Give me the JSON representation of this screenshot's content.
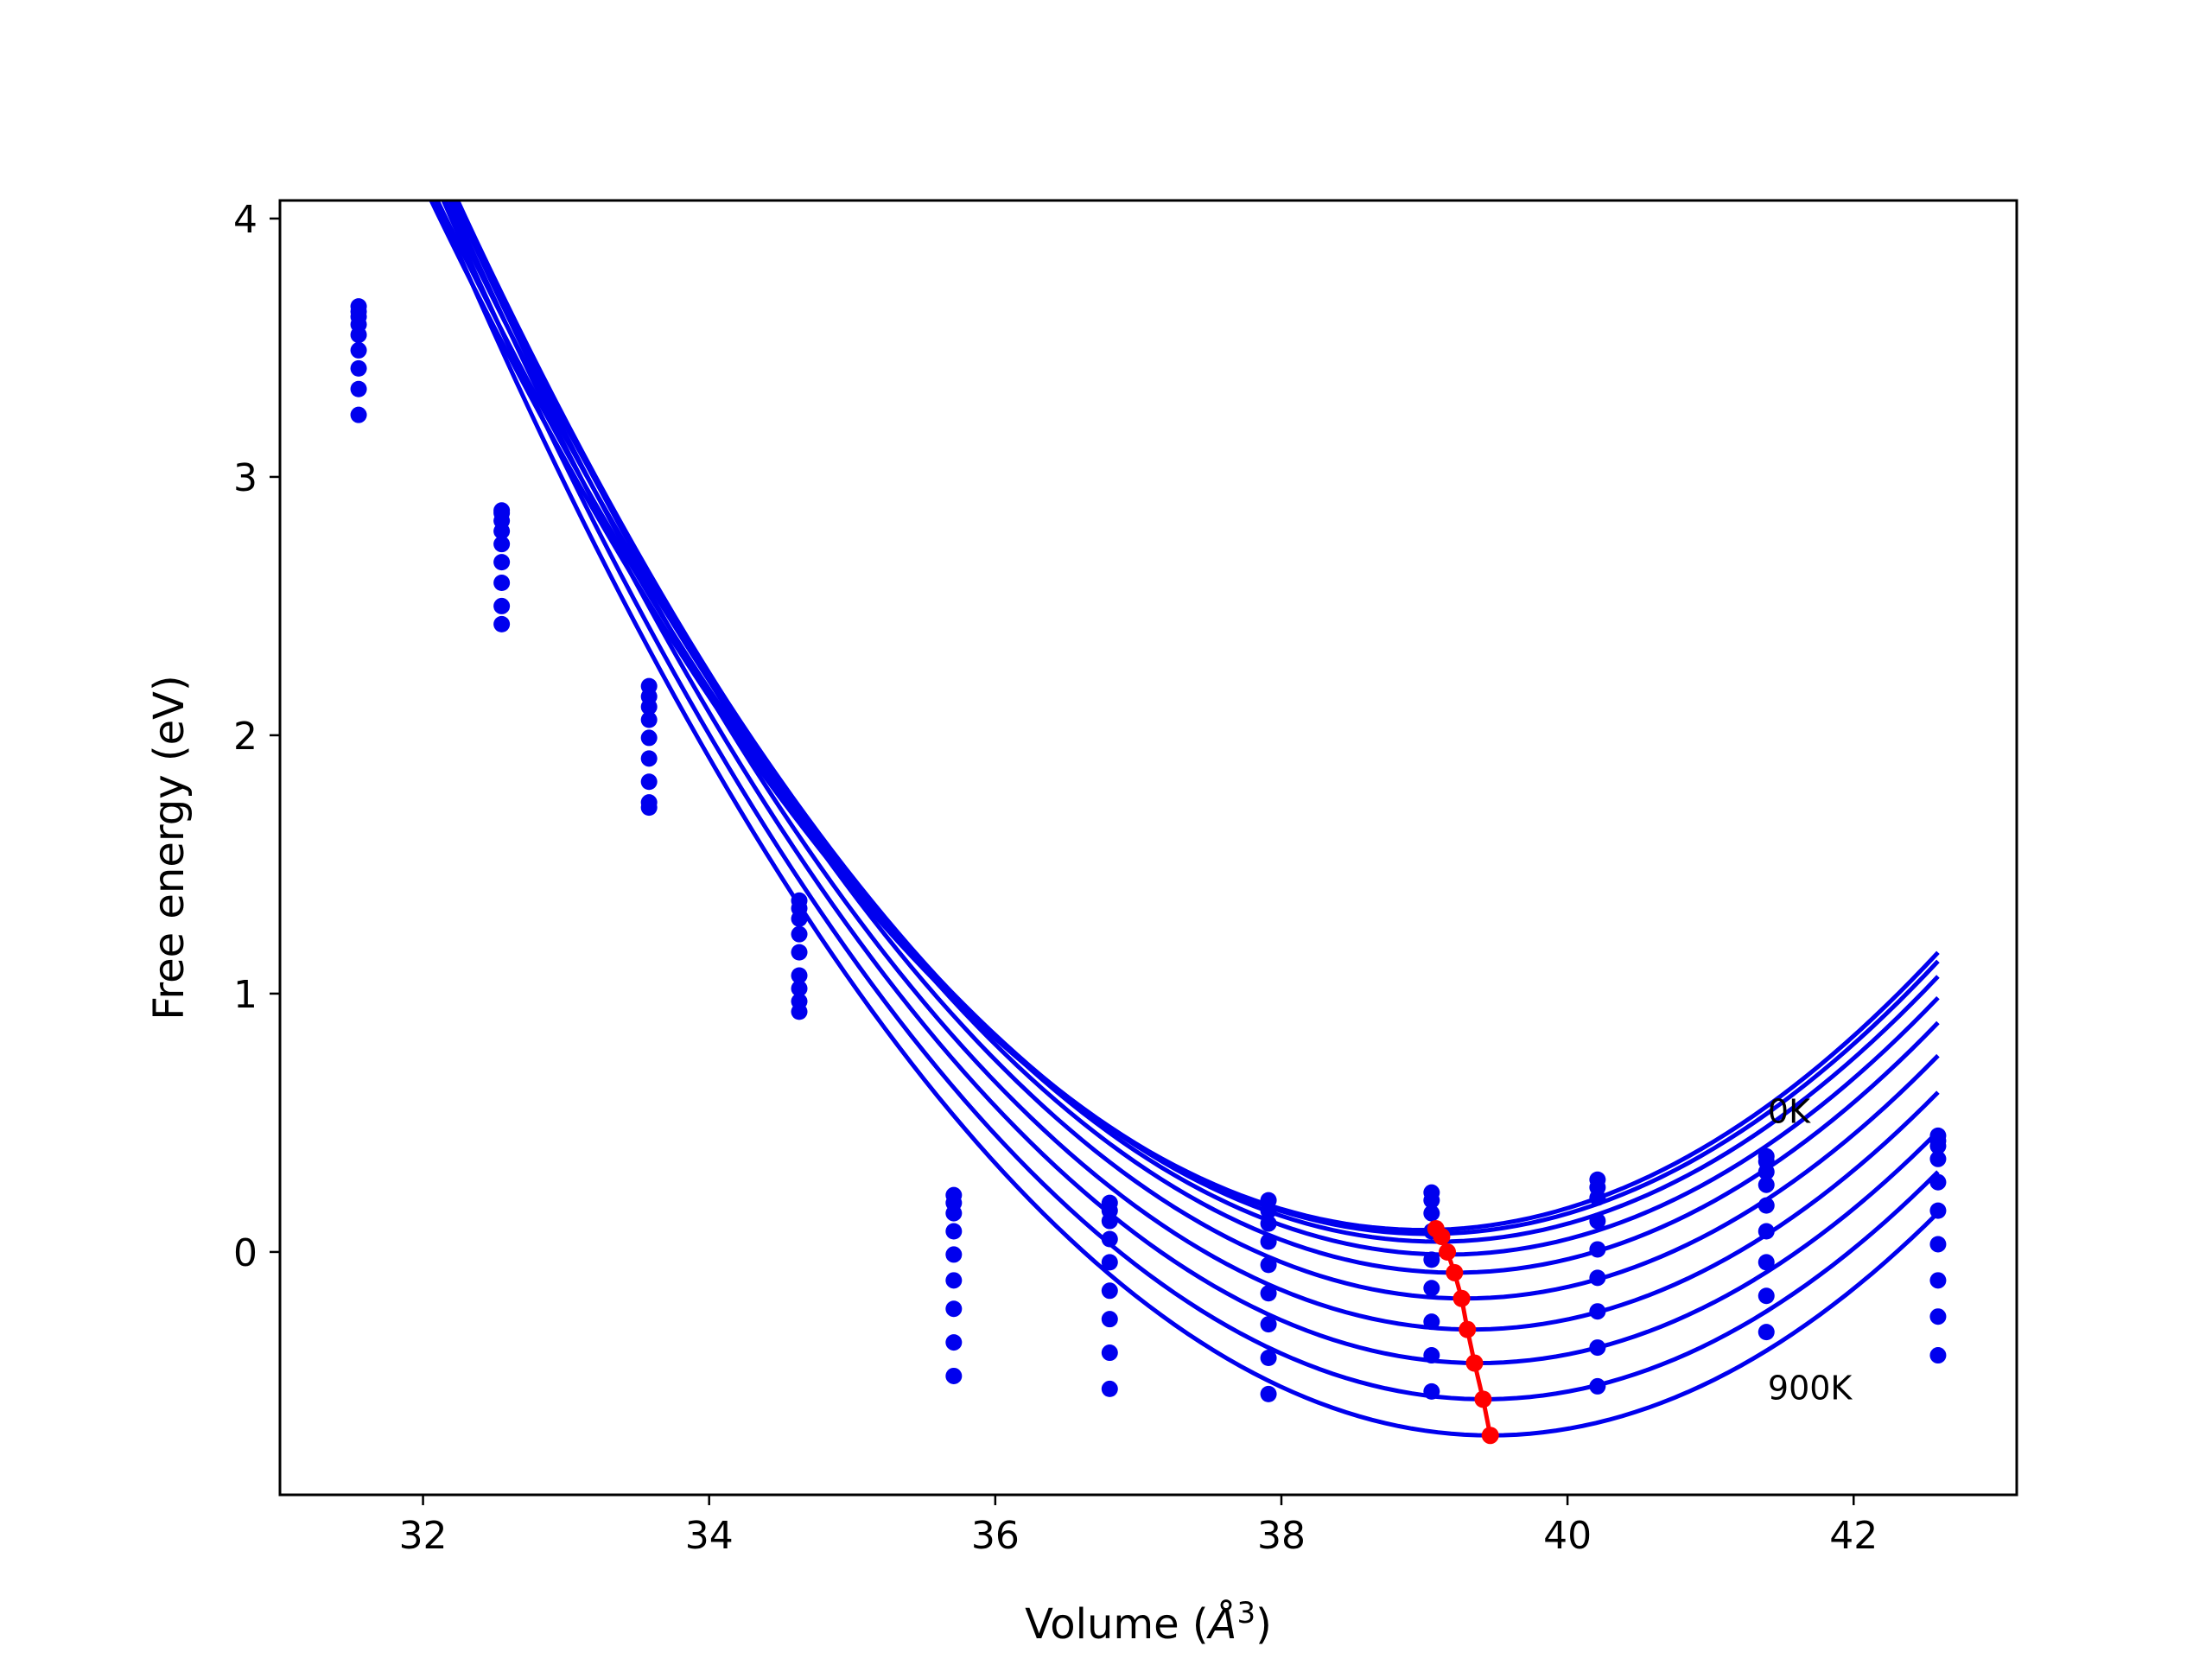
{
  "chart_data": {
    "type": "line",
    "title": "",
    "xlabel": "Volume (",
    "xlabel_unit_base": "Å",
    "xlabel_unit_exp": "3",
    "xlabel_close": ")",
    "ylabel": "Free energy (eV)",
    "xlim": [
      31,
      43.14
    ],
    "ylim": [
      -0.94,
      4.07
    ],
    "xticks": [
      32,
      34,
      36,
      38,
      40,
      42
    ],
    "yticks": [
      0,
      1,
      2,
      3,
      4
    ],
    "grid": false,
    "colors": {
      "fit": "#0000ee",
      "points": "#0000ee",
      "minimum": "#ff0000",
      "frame": "#000000"
    },
    "x_points": [
      31.55,
      32.55,
      33.58,
      34.63,
      35.71,
      36.8,
      37.91,
      39.05,
      40.21,
      41.39,
      42.59
    ],
    "fit_x_range": [
      31.55,
      42.59
    ],
    "annotations": [
      {
        "text": "0K",
        "x": 41.4,
        "y": 0.5
      },
      {
        "text": "900K",
        "x": 41.4,
        "y": -0.57
      }
    ],
    "series": [
      {
        "fit": {
          "a": 0.0829,
          "v0": 38.99,
          "emin": 0.085
        },
        "points": [
          3.66,
          2.87,
          2.19,
          1.36,
          0.22,
          0.19,
          0.2,
          0.23,
          0.28,
          0.37,
          0.45
        ]
      },
      {
        "fit": {
          "a": 0.0833,
          "v0": 39.03,
          "emin": 0.07
        },
        "points": [
          3.64,
          2.86,
          2.15,
          1.33,
          0.19,
          0.16,
          0.16,
          0.2,
          0.25,
          0.35,
          0.43
        ]
      },
      {
        "fit": {
          "a": 0.0838,
          "v0": 39.09,
          "emin": 0.04
        },
        "points": [
          3.62,
          2.83,
          2.11,
          1.29,
          0.15,
          0.12,
          0.11,
          0.15,
          0.21,
          0.31,
          0.41
        ]
      },
      {
        "fit": {
          "a": 0.0845,
          "v0": 39.16,
          "emin": -0.01
        },
        "points": [
          3.59,
          2.79,
          2.06,
          1.23,
          0.08,
          0.05,
          0.04,
          0.08,
          0.12,
          0.26,
          0.36
        ]
      },
      {
        "fit": {
          "a": 0.0852,
          "v0": 39.22,
          "emin": -0.08
        },
        "points": [
          3.55,
          2.74,
          1.99,
          1.16,
          -0.01,
          -0.04,
          -0.05,
          -0.03,
          0.01,
          0.18,
          0.27
        ]
      },
      {
        "fit": {
          "a": 0.0858,
          "v0": 39.28,
          "emin": -0.18
        },
        "points": [
          3.49,
          2.67,
          1.91,
          1.07,
          -0.11,
          -0.15,
          -0.16,
          -0.14,
          -0.1,
          0.08,
          0.16
        ]
      },
      {
        "fit": {
          "a": 0.0864,
          "v0": 39.33,
          "emin": -0.3
        },
        "points": [
          3.42,
          2.59,
          1.82,
          1.02,
          -0.22,
          -0.26,
          -0.28,
          -0.27,
          -0.23,
          -0.04,
          0.03
        ]
      },
      {
        "fit": {
          "a": 0.087,
          "v0": 39.38,
          "emin": -0.43
        },
        "points": [
          3.34,
          2.5,
          1.72,
          0.93,
          -0.35,
          -0.39,
          -0.41,
          -0.4,
          -0.37,
          -0.17,
          -0.11
        ]
      },
      {
        "fit": {
          "a": 0.0876,
          "v0": 39.42,
          "emin": -0.57
        },
        "points": [
          3.24,
          2.43,
          1.74,
          0.97,
          -0.48,
          -0.53,
          -0.55,
          -0.54,
          -0.52,
          -0.31,
          -0.25
        ]
      },
      {
        "fit": {
          "a": 0.088,
          "v0": 39.46,
          "emin": -0.71
        },
        "points": [],
        "extra_points": [
          [
            42.59,
            -0.4
          ]
        ]
      }
    ],
    "minimum_curve": {
      "x": [
        39.08,
        39.12,
        39.16,
        39.21,
        39.26,
        39.3,
        39.35,
        39.41,
        39.46
      ],
      "y": [
        0.09,
        0.06,
        0.0,
        -0.08,
        -0.18,
        -0.3,
        -0.43,
        -0.57,
        -0.71
      ]
    }
  }
}
